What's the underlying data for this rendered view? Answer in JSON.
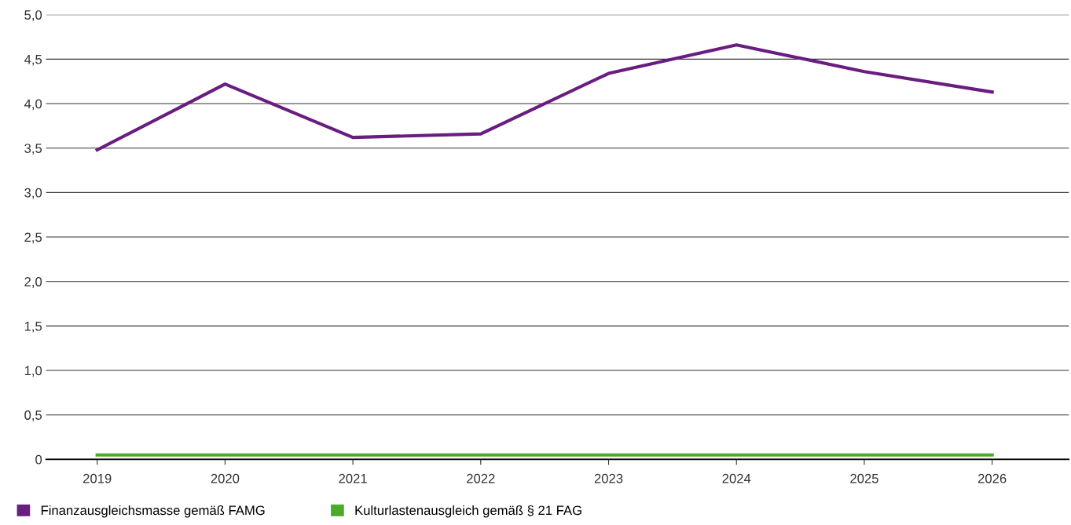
{
  "chart_data": {
    "type": "line",
    "categories": [
      "2019",
      "2020",
      "2021",
      "2022",
      "2023",
      "2024",
      "2025",
      "2026"
    ],
    "series": [
      {
        "name": "Finanzausgleichsmasse gemäß FAMG",
        "color": "#6a1d80",
        "values": [
          3.48,
          4.22,
          3.62,
          3.66,
          4.34,
          4.66,
          4.36,
          4.13
        ]
      },
      {
        "name": "Kulturlastenausgleich gemäß § 21 FAG",
        "color": "#4aaa2a",
        "values": [
          0.05,
          0.05,
          0.05,
          0.05,
          0.05,
          0.05,
          0.05,
          0.05
        ]
      }
    ],
    "ylim": [
      0,
      5
    ],
    "yticks": [
      {
        "value": 0,
        "label": "0"
      },
      {
        "value": 0.5,
        "label": "0,5"
      },
      {
        "value": 1,
        "label": "1,0"
      },
      {
        "value": 1.5,
        "label": "1,5"
      },
      {
        "value": 2,
        "label": "2,0"
      },
      {
        "value": 2.5,
        "label": "2,5"
      },
      {
        "value": 3,
        "label": "3,0"
      },
      {
        "value": 3.5,
        "label": "3,5"
      },
      {
        "value": 4,
        "label": "4,0"
      },
      {
        "value": 4.5,
        "label": "4,5"
      },
      {
        "value": 5,
        "label": "5,0"
      }
    ],
    "grid": "y",
    "legend": "bottom left",
    "marker": "none",
    "line_style": "solid"
  }
}
